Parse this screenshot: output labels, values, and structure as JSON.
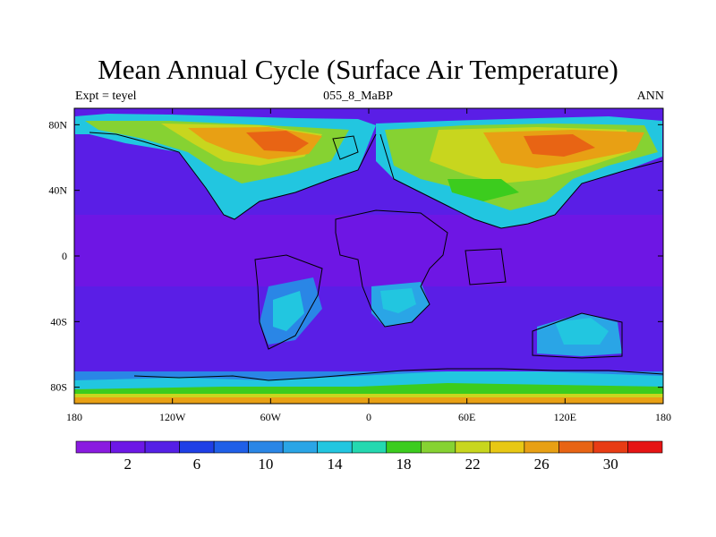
{
  "title": "Mean Annual Cycle (Surface Air Temperature)",
  "subtitle_left": "Expt = teyel",
  "subtitle_center": "055_8_MaBP",
  "subtitle_right": "ANN",
  "map": {
    "lon_ticks": [
      "180",
      "120W",
      "60W",
      "0",
      "60E",
      "120E",
      "180"
    ],
    "lat_ticks": [
      "80N",
      "40N",
      "0",
      "40S",
      "80S"
    ]
  },
  "colorbar": {
    "colors": [
      "#8a1be0",
      "#6d18e6",
      "#5520e6",
      "#1e3fe6",
      "#1f5fe8",
      "#2a86e6",
      "#2aa5e6",
      "#22c6e0",
      "#24d8b0",
      "#3ccc1e",
      "#86d232",
      "#c8d61e",
      "#e8c814",
      "#e8a014",
      "#e86414",
      "#e83c14",
      "#e61414"
    ],
    "labels": [
      "2",
      "6",
      "10",
      "14",
      "18",
      "22",
      "26",
      "30"
    ]
  }
}
